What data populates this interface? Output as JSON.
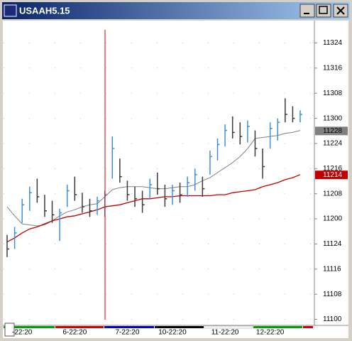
{
  "window": {
    "title": "USAAH5.15"
  },
  "chart_data": {
    "type": "ohlc",
    "categories": [
      null,
      null,
      "-22:20",
      null,
      null,
      null,
      null,
      null,
      null,
      "6-22:20",
      null,
      null,
      null,
      null,
      null,
      null,
      "7-22:20",
      null,
      null,
      null,
      null,
      null,
      "10-22:20",
      null,
      null,
      null,
      null,
      null,
      null,
      "11-22:20",
      null,
      null,
      null,
      null,
      null,
      "12-22:20",
      null,
      null,
      null,
      null
    ],
    "high": [
      111.84,
      111.92,
      112.2,
      112.32,
      112.4,
      112.24,
      112.18,
      112.1,
      112.34,
      112.42,
      112.26,
      112.2,
      112.22,
      112.28,
      112.82,
      112.6,
      112.38,
      112.32,
      112.28,
      112.4,
      112.46,
      112.34,
      112.34,
      112.36,
      112.42,
      112.5,
      112.42,
      112.68,
      112.8,
      112.94,
      113.02,
      112.96,
      112.98,
      112.88,
      112.7,
      112.96,
      113.0,
      113.2,
      113.12,
      113.08
    ],
    "low": [
      111.62,
      111.7,
      111.96,
      112.08,
      112.16,
      112.02,
      111.96,
      111.78,
      112.12,
      112.18,
      112.06,
      112.02,
      112.04,
      112.02,
      112.4,
      112.36,
      112.18,
      112.12,
      112.06,
      112.2,
      112.24,
      112.12,
      112.14,
      112.16,
      112.22,
      112.28,
      112.22,
      112.44,
      112.58,
      112.72,
      112.8,
      112.74,
      112.76,
      112.62,
      112.4,
      112.7,
      112.78,
      112.96,
      112.96,
      112.96
    ],
    "close": [
      111.7,
      111.86,
      112.14,
      112.26,
      112.22,
      112.08,
      112.04,
      112.06,
      112.28,
      112.24,
      112.12,
      112.08,
      112.18,
      112.24,
      112.7,
      112.42,
      112.24,
      112.2,
      112.14,
      112.34,
      112.3,
      112.2,
      112.28,
      112.24,
      112.36,
      112.44,
      112.3,
      112.62,
      112.74,
      112.88,
      112.86,
      112.82,
      112.92,
      112.7,
      112.52,
      112.9,
      112.96,
      113.04,
      113.0,
      113.04
    ],
    "up_color": "#3c8fdc",
    "down_color": "#3a3a3a",
    "series": [
      {
        "color": "#808080",
        "values": [
          112.12,
          112.03,
          111.95,
          111.94,
          111.93,
          111.94,
          111.98,
          112.03,
          112.07,
          112.09,
          112.12,
          112.14,
          112.15,
          112.22,
          112.29,
          112.31,
          112.32,
          112.32,
          112.32,
          112.31,
          112.3,
          112.3,
          112.31,
          112.32,
          112.32,
          112.34,
          112.38,
          112.41,
          112.46,
          112.51,
          112.56,
          112.62,
          112.7,
          112.8,
          112.81,
          112.82,
          112.83,
          112.85,
          112.86,
          112.88
        ],
        "last_value": {
          "value": 112.875,
          "label": "11228"
        }
      },
      {
        "color": "#c00000",
        "values": [
          111.77,
          111.81,
          111.86,
          111.9,
          111.92,
          111.95,
          111.98,
          112.0,
          112.02,
          112.03,
          112.05,
          112.07,
          112.09,
          112.12,
          112.13,
          112.14,
          112.16,
          112.18,
          112.2,
          112.2,
          112.21,
          112.22,
          112.22,
          112.23,
          112.23,
          112.23,
          112.23,
          112.23,
          112.24,
          112.24,
          112.26,
          112.27,
          112.28,
          112.29,
          112.32,
          112.34,
          112.36,
          112.39,
          112.41,
          112.44
        ],
        "last_value": {
          "value": 112.4375,
          "label": "11214"
        }
      }
    ],
    "ylim": [
      110.94,
      113.98
    ],
    "yticks": [
      {
        "value": 113.75,
        "label": "11324"
      },
      {
        "value": 113.5,
        "label": "11316"
      },
      {
        "value": 113.25,
        "label": "11308"
      },
      {
        "value": 113.0,
        "label": "11300"
      },
      {
        "value": 112.75,
        "label": "11224"
      },
      {
        "value": 112.5,
        "label": "11216"
      },
      {
        "value": 112.25,
        "label": "11208"
      },
      {
        "value": 112.0,
        "label": "11200"
      },
      {
        "value": 111.75,
        "label": "11124"
      },
      {
        "value": 111.5,
        "label": "11116"
      },
      {
        "value": 111.25,
        "label": "11108"
      },
      {
        "value": 111.0,
        "label": "11100"
      }
    ],
    "grid": true
  }
}
